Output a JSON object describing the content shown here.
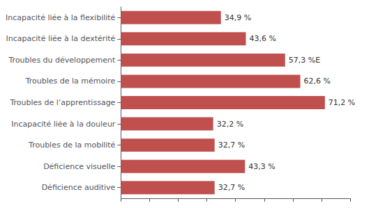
{
  "chart_data": {
    "type": "bar",
    "orientation": "horizontal",
    "categories": [
      "Incapacité liée à la flexibilité",
      "Incapacité liée à la dextérité",
      "Troubles du développement",
      "Troubles de la mémoire",
      "Troubles de l’apprentissage",
      "Incapacité liée à la douleur",
      "Troubles de la mobilité",
      "Déficience visuelle",
      "Déficience auditive"
    ],
    "values": [
      34.9,
      43.6,
      57.3,
      62.6,
      71.2,
      32.2,
      32.7,
      43.3,
      32.7
    ],
    "value_labels": [
      "34,9 %",
      "43,6 %",
      "57,3 %E",
      "62,6 %",
      "71,2 %",
      "32,2 %",
      "32,7 %",
      "43,3 %",
      "32,7 %"
    ],
    "color": "#c0504d",
    "xlim": [
      0,
      80
    ],
    "xticks": [
      0,
      10,
      20,
      30,
      40,
      50,
      60,
      70,
      80
    ],
    "tick_labels": "y",
    "grid": false,
    "data_labels": true
  }
}
